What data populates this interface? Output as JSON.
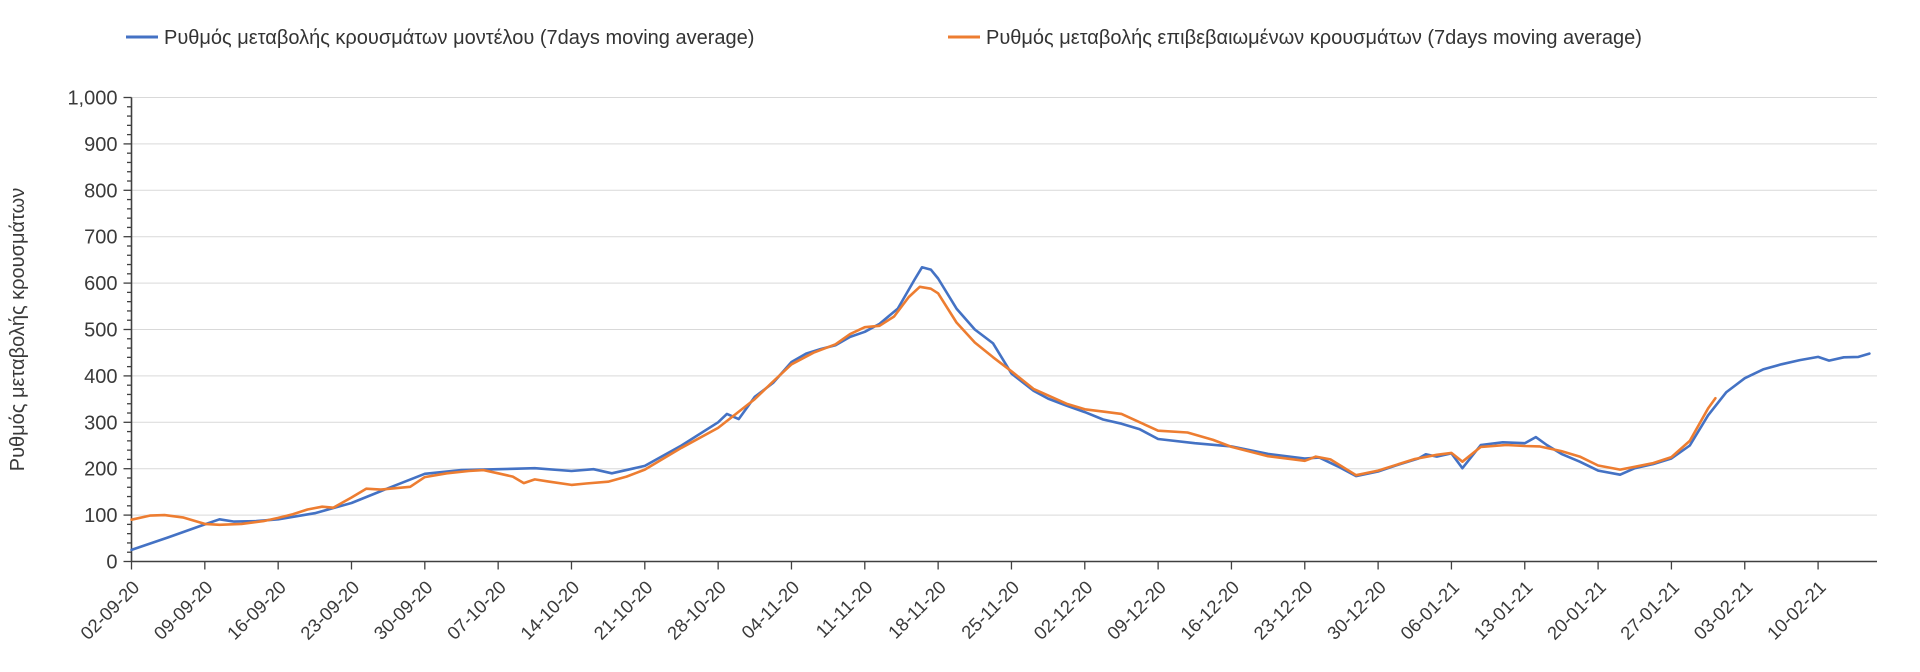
{
  "chart_data": {
    "type": "line",
    "title": "",
    "ylabel": "Ρυθμός μεταβολής κρουσμάτων",
    "ylim": [
      0,
      1000
    ],
    "y_tick_step": 100,
    "y_minor_tick_step": 20,
    "y_tick_labels": [
      "0",
      "100",
      "200",
      "300",
      "400",
      "500",
      "600",
      "700",
      "800",
      "900",
      "1,000"
    ],
    "x_tick_labels": [
      "02-09-20",
      "09-09-20",
      "16-09-20",
      "23-09-20",
      "30-09-20",
      "07-10-20",
      "14-10-20",
      "21-10-20",
      "28-10-20",
      "04-11-20",
      "11-11-20",
      "18-11-20",
      "25-11-20",
      "02-12-20",
      "09-12-20",
      "16-12-20",
      "23-12-20",
      "30-12-20",
      "06-01-21",
      "13-01-21",
      "20-01-21",
      "27-01-21",
      "03-02-21",
      "10-02-21"
    ],
    "x_unit": "weeks since 02-09-20",
    "grid": "horizontal",
    "legend_position": "top",
    "colors": {
      "model": "#4472C4",
      "confirmed": "#ED7D31",
      "grid": "#D9D9D9",
      "axis": "#404040",
      "text": "#3A3A3A"
    },
    "series": [
      {
        "name": "Ρυθμός μεταβολής κρουσμάτων μοντέλου (7days moving average)",
        "color": "#4472C4",
        "points": [
          [
            0,
            25
          ],
          [
            0.5,
            52
          ],
          [
            1,
            80
          ],
          [
            1.2,
            91
          ],
          [
            1.4,
            86
          ],
          [
            1.7,
            87
          ],
          [
            2,
            91
          ],
          [
            2.5,
            104
          ],
          [
            3,
            126
          ],
          [
            3.5,
            158
          ],
          [
            4,
            189
          ],
          [
            4.5,
            197
          ],
          [
            5,
            199
          ],
          [
            5.5,
            201
          ],
          [
            6,
            195
          ],
          [
            6.3,
            199
          ],
          [
            6.55,
            190
          ],
          [
            7,
            206
          ],
          [
            7.5,
            250
          ],
          [
            8,
            300
          ],
          [
            8.12,
            318
          ],
          [
            8.28,
            307
          ],
          [
            8.5,
            355
          ],
          [
            8.75,
            385
          ],
          [
            9,
            430
          ],
          [
            9.2,
            448
          ],
          [
            9.4,
            458
          ],
          [
            9.6,
            466
          ],
          [
            9.8,
            484
          ],
          [
            10,
            495
          ],
          [
            10.2,
            512
          ],
          [
            10.45,
            545
          ],
          [
            10.68,
            608
          ],
          [
            10.78,
            634
          ],
          [
            10.9,
            629
          ],
          [
            11,
            610
          ],
          [
            11.25,
            545
          ],
          [
            11.5,
            500
          ],
          [
            11.75,
            470
          ],
          [
            12,
            405
          ],
          [
            12.3,
            368
          ],
          [
            12.5,
            351
          ],
          [
            12.75,
            336
          ],
          [
            13,
            322
          ],
          [
            13.25,
            306
          ],
          [
            13.5,
            297
          ],
          [
            13.75,
            285
          ],
          [
            14,
            264
          ],
          [
            14.5,
            255
          ],
          [
            15,
            248
          ],
          [
            15.5,
            232
          ],
          [
            16,
            222
          ],
          [
            16.2,
            224
          ],
          [
            16.45,
            205
          ],
          [
            16.7,
            184
          ],
          [
            17,
            194
          ],
          [
            17.3,
            210
          ],
          [
            17.55,
            222
          ],
          [
            17.65,
            231
          ],
          [
            17.8,
            226
          ],
          [
            18,
            233
          ],
          [
            18.15,
            201
          ],
          [
            18.4,
            251
          ],
          [
            18.7,
            257
          ],
          [
            19,
            255
          ],
          [
            19.15,
            268
          ],
          [
            19.3,
            251
          ],
          [
            19.5,
            232
          ],
          [
            19.75,
            215
          ],
          [
            20,
            196
          ],
          [
            20.3,
            187
          ],
          [
            20.5,
            201
          ],
          [
            20.75,
            210
          ],
          [
            21,
            222
          ],
          [
            21.25,
            250
          ],
          [
            21.5,
            315
          ],
          [
            21.75,
            365
          ],
          [
            22,
            395
          ],
          [
            22.25,
            414
          ],
          [
            22.5,
            425
          ],
          [
            22.75,
            434
          ],
          [
            23,
            441
          ],
          [
            23.15,
            433
          ],
          [
            23.35,
            440
          ],
          [
            23.55,
            441
          ],
          [
            23.7,
            448
          ]
        ]
      },
      {
        "name": "Ρυθμός μεταβολής επιβεβαιωμένων κρουσμάτων (7days moving average)",
        "color": "#ED7D31",
        "points": [
          [
            0,
            90
          ],
          [
            0.25,
            99
          ],
          [
            0.45,
            100
          ],
          [
            0.7,
            95
          ],
          [
            1,
            81
          ],
          [
            1.2,
            79
          ],
          [
            1.5,
            81
          ],
          [
            1.8,
            87
          ],
          [
            2,
            94
          ],
          [
            2.2,
            102
          ],
          [
            2.4,
            112
          ],
          [
            2.6,
            118
          ],
          [
            2.75,
            116
          ],
          [
            3,
            138
          ],
          [
            3.2,
            157
          ],
          [
            3.4,
            155
          ],
          [
            3.6,
            158
          ],
          [
            3.8,
            161
          ],
          [
            4,
            182
          ],
          [
            4.3,
            190
          ],
          [
            4.6,
            195
          ],
          [
            4.8,
            197
          ],
          [
            5,
            190
          ],
          [
            5.2,
            183
          ],
          [
            5.35,
            169
          ],
          [
            5.5,
            177
          ],
          [
            5.7,
            172
          ],
          [
            6,
            165
          ],
          [
            6.2,
            168
          ],
          [
            6.5,
            172
          ],
          [
            6.75,
            183
          ],
          [
            7,
            198
          ],
          [
            7.5,
            245
          ],
          [
            8,
            288
          ],
          [
            8.5,
            350
          ],
          [
            8.75,
            388
          ],
          [
            9,
            425
          ],
          [
            9.3,
            450
          ],
          [
            9.6,
            468
          ],
          [
            9.8,
            490
          ],
          [
            10,
            505
          ],
          [
            10.2,
            508
          ],
          [
            10.4,
            528
          ],
          [
            10.6,
            570
          ],
          [
            10.75,
            592
          ],
          [
            10.9,
            588
          ],
          [
            11,
            578
          ],
          [
            11.25,
            515
          ],
          [
            11.5,
            472
          ],
          [
            11.75,
            440
          ],
          [
            12,
            410
          ],
          [
            12.3,
            372
          ],
          [
            12.5,
            358
          ],
          [
            12.75,
            340
          ],
          [
            13,
            328
          ],
          [
            13.25,
            323
          ],
          [
            13.5,
            318
          ],
          [
            13.75,
            300
          ],
          [
            14,
            282
          ],
          [
            14.4,
            278
          ],
          [
            14.75,
            262
          ],
          [
            15,
            247
          ],
          [
            15.5,
            227
          ],
          [
            16,
            217
          ],
          [
            16.15,
            226
          ],
          [
            16.35,
            220
          ],
          [
            16.7,
            186
          ],
          [
            17,
            196
          ],
          [
            17.5,
            221
          ],
          [
            17.8,
            230
          ],
          [
            18,
            234
          ],
          [
            18.15,
            215
          ],
          [
            18.4,
            247
          ],
          [
            18.75,
            251
          ],
          [
            19,
            249
          ],
          [
            19.2,
            248
          ],
          [
            19.5,
            238
          ],
          [
            19.75,
            226
          ],
          [
            20,
            207
          ],
          [
            20.3,
            198
          ],
          [
            20.5,
            204
          ],
          [
            20.75,
            212
          ],
          [
            21,
            225
          ],
          [
            21.25,
            260
          ],
          [
            21.5,
            330
          ],
          [
            21.6,
            352
          ]
        ]
      }
    ]
  }
}
